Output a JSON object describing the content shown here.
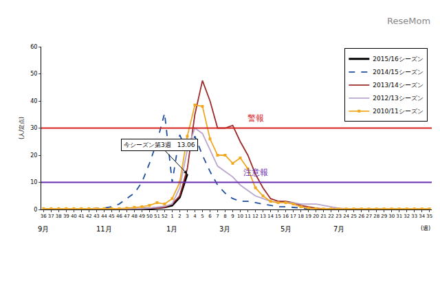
{
  "chart_data": {
    "type": "line",
    "watermark": "ReseMom",
    "y_label": "(人/定点)",
    "categories": [
      "36",
      "37",
      "38",
      "39",
      "40",
      "41",
      "42",
      "43",
      "44",
      "45",
      "46",
      "47",
      "48",
      "49",
      "50",
      "51",
      "52",
      "1",
      "2",
      "3",
      "4",
      "5",
      "6",
      "7",
      "8",
      "9",
      "10",
      "11",
      "12",
      "13",
      "14",
      "15",
      "16",
      "17",
      "18",
      "19",
      "20",
      "21",
      "22",
      "23",
      "24",
      "25",
      "26",
      "27",
      "28",
      "29",
      "30",
      "31",
      "32",
      "33",
      "34",
      "35"
    ],
    "series": [
      {
        "name": "2015/16シーズン",
        "color": "#000000",
        "line_style": "solid",
        "values": [
          0.1,
          0.1,
          0.1,
          0.1,
          0.1,
          0.1,
          0.1,
          0.1,
          0.1,
          0.1,
          0.1,
          0.1,
          0.2,
          0.2,
          0.3,
          0.5,
          0.8,
          1.5,
          4.5,
          13.06,
          null,
          null,
          null,
          null,
          null,
          null,
          null,
          null,
          null,
          null,
          null,
          null,
          null,
          null,
          null,
          null,
          null,
          null,
          null,
          null,
          null,
          null,
          null,
          null,
          null,
          null,
          null,
          null,
          null,
          null,
          null,
          null
        ]
      },
      {
        "name": "2014/15シーズン",
        "color": "#1f4e9c",
        "line_style": "dash",
        "values": [
          0.1,
          0.1,
          0.1,
          0.1,
          0.2,
          0.2,
          0.3,
          0.4,
          0.5,
          1,
          2,
          4,
          6,
          10,
          17,
          25,
          35.5,
          10,
          27.5,
          21,
          27,
          20,
          14,
          9,
          6,
          4,
          3,
          3,
          2.5,
          2,
          1.5,
          1,
          1,
          0.8,
          0.5,
          0.3,
          0.3,
          0.3,
          0.2,
          0.2,
          0.2,
          0.2,
          0.1,
          0.1,
          0.1,
          0.1,
          0.1,
          0.1,
          0.1,
          0.1,
          0.1,
          0.1
        ]
      },
      {
        "name": "2013/14シーズン",
        "color": "#9b2a2a",
        "line_style": "solid",
        "values": [
          0.1,
          0.1,
          0.1,
          0.1,
          0.1,
          0.1,
          0.1,
          0.1,
          0.2,
          0.2,
          0.2,
          0.3,
          0.3,
          0.4,
          0.4,
          0.5,
          0.8,
          2,
          5,
          15,
          35,
          47.5,
          40,
          30,
          30,
          31,
          25,
          20,
          13,
          8,
          4,
          3,
          3,
          2.5,
          1.5,
          1,
          0.5,
          0.2,
          0.2,
          0.2,
          0.2,
          0.1,
          0.1,
          0.1,
          0.1,
          0.1,
          0.1,
          0.1,
          0.1,
          0.1,
          0.1,
          0.1
        ]
      },
      {
        "name": "2012/13シーズン",
        "color": "#b9a6cf",
        "line_style": "solid",
        "values": [
          0.1,
          0.1,
          0.1,
          0.1,
          0.1,
          0.1,
          0.1,
          0.1,
          0.1,
          0.1,
          0.2,
          0.2,
          0.3,
          0.3,
          0.5,
          0.8,
          1.2,
          2,
          8,
          22,
          30,
          28,
          22,
          16,
          14,
          12,
          9,
          7,
          5,
          4,
          3,
          2.5,
          2.5,
          2.5,
          2,
          2,
          2,
          1.5,
          1,
          0.5,
          0.3,
          0.1,
          0.1,
          0.1,
          0.1,
          0.1,
          0.1,
          0.1,
          0.1,
          0.1,
          0.1,
          0.1
        ]
      },
      {
        "name": "2010/11シーズン",
        "color": "#f0a820",
        "line_style": "solid",
        "marker": "square",
        "values": [
          0.3,
          0.3,
          0.3,
          0.3,
          0.3,
          0.3,
          0.3,
          0.3,
          0.3,
          0.3,
          0.3,
          0.5,
          0.8,
          1,
          1.5,
          2.5,
          2,
          4,
          10,
          27,
          38.5,
          38,
          26,
          20,
          20,
          17,
          19,
          15,
          8,
          5,
          3,
          2.5,
          2.5,
          2,
          1,
          0.5,
          0.3,
          0.2,
          0.2,
          0.2,
          0.2,
          0.2,
          0.2,
          0.2,
          0.2,
          0.2,
          0.2,
          0.2,
          0.2,
          0.2,
          0.2,
          0.2
        ]
      }
    ],
    "ylim": [
      0,
      60
    ],
    "yticks": [
      0,
      10,
      20,
      30,
      40,
      50,
      60
    ],
    "grid": false,
    "legend": "top right",
    "reference_lines": [
      {
        "value": 30,
        "label": "警報",
        "color": "#d4201e"
      },
      {
        "value": 10,
        "label": "注意報",
        "color": "#6a2fb0"
      }
    ],
    "annotations": [
      {
        "text": "今シーズン第3週　13.06",
        "x": "3",
        "y": 13.06
      }
    ],
    "month_labels": [
      {
        "text": "9月",
        "x": "36"
      },
      {
        "text": "11月",
        "x": "44"
      },
      {
        "text": "1月",
        "x": "1"
      },
      {
        "text": "3月",
        "x": "8"
      },
      {
        "text": "5月",
        "x": "16"
      },
      {
        "text": "7月",
        "x": "23"
      }
    ],
    "x_unit_label": "(週)"
  }
}
